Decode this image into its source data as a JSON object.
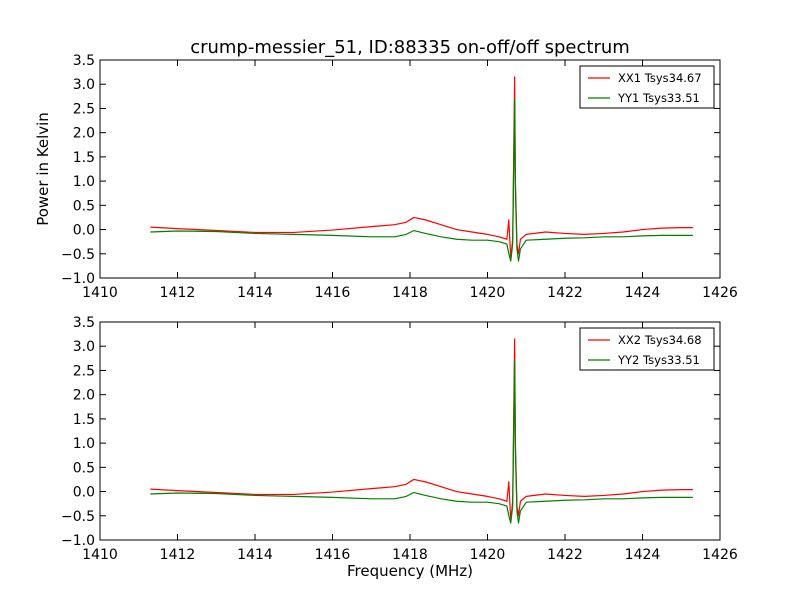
{
  "title": "crump-messier_51, ID:88335 on-off/off spectrum",
  "colors": {
    "red": "#ff0000",
    "green": "#008000",
    "axes": "#000000",
    "background": "#ffffff"
  },
  "chart_data": [
    {
      "type": "line",
      "title": "crump-messier_51, ID:88335 on-off/off spectrum",
      "xlabel": "",
      "ylabel": "Power in Kelvin",
      "xlim": [
        1410,
        1426
      ],
      "ylim": [
        -1.0,
        3.5
      ],
      "xticks": [
        1410,
        1412,
        1414,
        1416,
        1418,
        1420,
        1422,
        1424,
        1426
      ],
      "yticks": [
        -1.0,
        -0.5,
        0.0,
        0.5,
        1.0,
        1.5,
        2.0,
        2.5,
        3.0,
        3.5
      ],
      "xtick_labels": [
        "1410",
        "1412",
        "1414",
        "1416",
        "1418",
        "1420",
        "1422",
        "1424",
        "1426"
      ],
      "ytick_labels": [
        "−1.0",
        "−0.5",
        "0.0",
        "0.5",
        "1.0",
        "1.5",
        "2.0",
        "2.5",
        "3.0",
        "3.5"
      ],
      "grid": false,
      "legend_position": "top-right",
      "series": [
        {
          "name": "XX1 Tsys34.67",
          "color": "#ff0000",
          "x": [
            1411.3,
            1412.0,
            1413.0,
            1414.0,
            1415.0,
            1416.0,
            1417.0,
            1417.6,
            1417.9,
            1418.1,
            1418.4,
            1418.8,
            1419.2,
            1419.6,
            1420.0,
            1420.3,
            1420.5,
            1420.55,
            1420.6,
            1420.65,
            1420.7,
            1420.72,
            1420.76,
            1420.8,
            1420.85,
            1421.0,
            1421.5,
            1422.0,
            1422.5,
            1423.0,
            1423.5,
            1424.0,
            1424.5,
            1425.0,
            1425.3
          ],
          "y": [
            0.05,
            0.02,
            -0.02,
            -0.06,
            -0.06,
            -0.01,
            0.06,
            0.1,
            0.15,
            0.25,
            0.2,
            0.1,
            0.0,
            -0.05,
            -0.1,
            -0.15,
            -0.2,
            0.2,
            -0.6,
            -0.2,
            3.15,
            1.0,
            -0.3,
            -0.5,
            -0.2,
            -0.1,
            -0.05,
            -0.08,
            -0.1,
            -0.08,
            -0.05,
            0.0,
            0.03,
            0.04,
            0.04
          ]
        },
        {
          "name": "YY1 Tsys33.51",
          "color": "#008000",
          "x": [
            1411.3,
            1412.0,
            1413.0,
            1414.0,
            1415.0,
            1416.0,
            1417.0,
            1417.6,
            1417.9,
            1418.1,
            1418.4,
            1418.8,
            1419.2,
            1419.6,
            1420.0,
            1420.3,
            1420.5,
            1420.55,
            1420.6,
            1420.65,
            1420.7,
            1420.72,
            1420.76,
            1420.8,
            1420.85,
            1421.0,
            1421.5,
            1422.0,
            1422.5,
            1423.0,
            1423.5,
            1424.0,
            1424.5,
            1425.0,
            1425.3
          ],
          "y": [
            -0.05,
            -0.03,
            -0.04,
            -0.08,
            -0.1,
            -0.12,
            -0.15,
            -0.15,
            -0.1,
            -0.02,
            -0.08,
            -0.15,
            -0.2,
            -0.22,
            -0.22,
            -0.25,
            -0.3,
            -0.5,
            -0.65,
            -0.3,
            2.7,
            0.8,
            -0.4,
            -0.65,
            -0.4,
            -0.22,
            -0.2,
            -0.18,
            -0.17,
            -0.15,
            -0.15,
            -0.13,
            -0.12,
            -0.12,
            -0.12
          ]
        }
      ]
    },
    {
      "type": "line",
      "title": "",
      "xlabel": "Frequency (MHz)",
      "ylabel": "",
      "xlim": [
        1410,
        1426
      ],
      "ylim": [
        -1.0,
        3.5
      ],
      "xticks": [
        1410,
        1412,
        1414,
        1416,
        1418,
        1420,
        1422,
        1424,
        1426
      ],
      "yticks": [
        -1.0,
        -0.5,
        0.0,
        0.5,
        1.0,
        1.5,
        2.0,
        2.5,
        3.0,
        3.5
      ],
      "xtick_labels": [
        "1410",
        "1412",
        "1414",
        "1416",
        "1418",
        "1420",
        "1422",
        "1424",
        "1426"
      ],
      "ytick_labels": [
        "−1.0",
        "−0.5",
        "0.0",
        "0.5",
        "1.0",
        "1.5",
        "2.0",
        "2.5",
        "3.0",
        "3.5"
      ],
      "grid": false,
      "legend_position": "top-right",
      "series": [
        {
          "name": "XX2 Tsys34.68",
          "color": "#ff0000",
          "x": [
            1411.3,
            1412.0,
            1413.0,
            1414.0,
            1415.0,
            1416.0,
            1417.0,
            1417.6,
            1417.9,
            1418.1,
            1418.4,
            1418.8,
            1419.2,
            1419.6,
            1420.0,
            1420.3,
            1420.5,
            1420.55,
            1420.6,
            1420.65,
            1420.7,
            1420.72,
            1420.76,
            1420.8,
            1420.85,
            1421.0,
            1421.5,
            1422.0,
            1422.5,
            1423.0,
            1423.5,
            1424.0,
            1424.5,
            1425.0,
            1425.3
          ],
          "y": [
            0.05,
            0.02,
            -0.02,
            -0.06,
            -0.06,
            -0.01,
            0.06,
            0.1,
            0.15,
            0.25,
            0.2,
            0.1,
            0.0,
            -0.05,
            -0.1,
            -0.15,
            -0.2,
            0.2,
            -0.6,
            -0.2,
            3.15,
            1.0,
            -0.3,
            -0.5,
            -0.2,
            -0.1,
            -0.05,
            -0.08,
            -0.1,
            -0.08,
            -0.05,
            0.0,
            0.03,
            0.04,
            0.04
          ]
        },
        {
          "name": "YY2 Tsys33.51",
          "color": "#008000",
          "x": [
            1411.3,
            1412.0,
            1413.0,
            1414.0,
            1415.0,
            1416.0,
            1417.0,
            1417.6,
            1417.9,
            1418.1,
            1418.4,
            1418.8,
            1419.2,
            1419.6,
            1420.0,
            1420.3,
            1420.5,
            1420.55,
            1420.6,
            1420.65,
            1420.7,
            1420.72,
            1420.76,
            1420.8,
            1420.85,
            1421.0,
            1421.5,
            1422.0,
            1422.5,
            1423.0,
            1423.5,
            1424.0,
            1424.5,
            1425.0,
            1425.3
          ],
          "y": [
            -0.05,
            -0.03,
            -0.04,
            -0.08,
            -0.1,
            -0.12,
            -0.15,
            -0.15,
            -0.1,
            -0.02,
            -0.08,
            -0.15,
            -0.2,
            -0.22,
            -0.22,
            -0.25,
            -0.3,
            -0.5,
            -0.65,
            -0.3,
            2.7,
            0.8,
            -0.4,
            -0.65,
            -0.4,
            -0.22,
            -0.2,
            -0.18,
            -0.17,
            -0.15,
            -0.15,
            -0.13,
            -0.12,
            -0.12,
            -0.12
          ]
        }
      ]
    }
  ]
}
